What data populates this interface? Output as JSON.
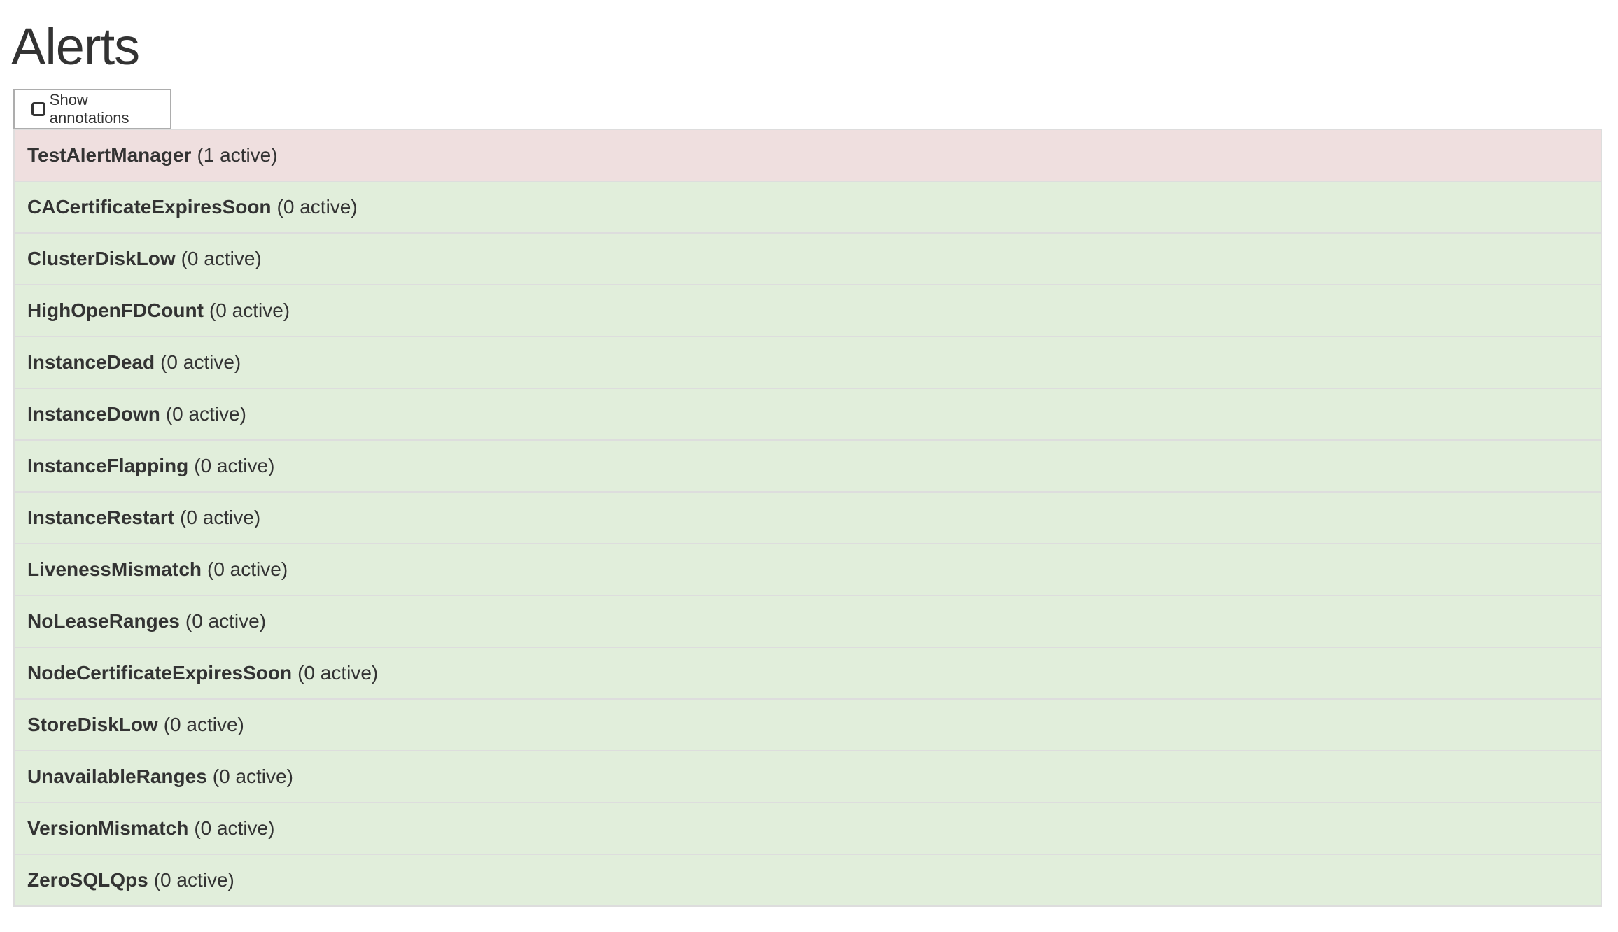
{
  "title": "Alerts",
  "toggle": {
    "label": "Show annotations",
    "checked": false
  },
  "colors": {
    "firing": "#efdfdf",
    "inactive": "#e1eedb",
    "border": "#dddddd"
  },
  "alerts": [
    {
      "name": "TestAlertManager",
      "count": "(1 active)",
      "state": "firing"
    },
    {
      "name": "CACertificateExpiresSoon",
      "count": "(0 active)",
      "state": "inactive"
    },
    {
      "name": "ClusterDiskLow",
      "count": "(0 active)",
      "state": "inactive"
    },
    {
      "name": "HighOpenFDCount",
      "count": "(0 active)",
      "state": "inactive"
    },
    {
      "name": "InstanceDead",
      "count": "(0 active)",
      "state": "inactive"
    },
    {
      "name": "InstanceDown",
      "count": "(0 active)",
      "state": "inactive"
    },
    {
      "name": "InstanceFlapping",
      "count": "(0 active)",
      "state": "inactive"
    },
    {
      "name": "InstanceRestart",
      "count": "(0 active)",
      "state": "inactive"
    },
    {
      "name": "LivenessMismatch",
      "count": "(0 active)",
      "state": "inactive"
    },
    {
      "name": "NoLeaseRanges",
      "count": "(0 active)",
      "state": "inactive"
    },
    {
      "name": "NodeCertificateExpiresSoon",
      "count": "(0 active)",
      "state": "inactive"
    },
    {
      "name": "StoreDiskLow",
      "count": "(0 active)",
      "state": "inactive"
    },
    {
      "name": "UnavailableRanges",
      "count": "(0 active)",
      "state": "inactive"
    },
    {
      "name": "VersionMismatch",
      "count": "(0 active)",
      "state": "inactive"
    },
    {
      "name": "ZeroSQLQps",
      "count": "(0 active)",
      "state": "inactive"
    }
  ]
}
